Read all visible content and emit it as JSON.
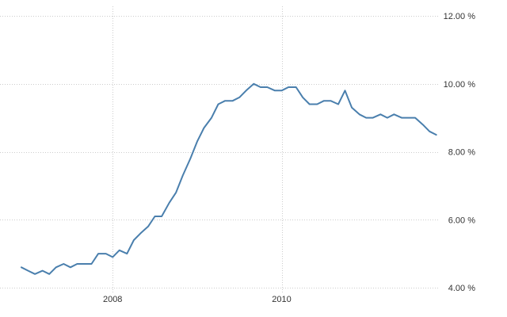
{
  "chart_data": {
    "type": "line",
    "title": "",
    "xlabel": "",
    "ylabel": "",
    "x_ticks": [
      {
        "label": "2008",
        "x": 2008.0
      },
      {
        "label": "2010",
        "x": 2010.0
      }
    ],
    "y_ticks": [
      {
        "label": "4.00 %",
        "y": 4
      },
      {
        "label": "6.00 %",
        "y": 6
      },
      {
        "label": "8.00 %",
        "y": 8
      },
      {
        "label": "10.00 %",
        "y": 10
      },
      {
        "label": "12.00 %",
        "y": 12
      }
    ],
    "xlim": [
      2006.92,
      2011.87
    ],
    "ylim": [
      4,
      12
    ],
    "y_axis_position": "right",
    "grid": true,
    "line_color": "#4a7fad",
    "grid_color": "#cccccc",
    "series": [
      {
        "x": [
          2006.92,
          2007.0,
          2007.08,
          2007.17,
          2007.25,
          2007.33,
          2007.42,
          2007.5,
          2007.58,
          2007.67,
          2007.75,
          2007.83,
          2007.92,
          2008.0,
          2008.08,
          2008.17,
          2008.25,
          2008.33,
          2008.42,
          2008.5,
          2008.58,
          2008.67,
          2008.75,
          2008.83,
          2008.92,
          2009.0,
          2009.08,
          2009.17,
          2009.25,
          2009.33,
          2009.42,
          2009.5,
          2009.58,
          2009.67,
          2009.75,
          2009.83,
          2009.92,
          2010.0,
          2010.08,
          2010.17,
          2010.25,
          2010.33,
          2010.42,
          2010.5,
          2010.58,
          2010.67,
          2010.75,
          2010.83,
          2010.92,
          2011.0,
          2011.08,
          2011.17,
          2011.25,
          2011.33,
          2011.42,
          2011.5,
          2011.58,
          2011.67,
          2011.75,
          2011.83
        ],
        "values": [
          4.6,
          4.5,
          4.4,
          4.5,
          4.4,
          4.6,
          4.7,
          4.6,
          4.7,
          4.7,
          4.7,
          5.0,
          5.0,
          4.9,
          5.1,
          5.0,
          5.4,
          5.6,
          5.8,
          6.1,
          6.1,
          6.5,
          6.8,
          7.3,
          7.8,
          8.3,
          8.7,
          9.0,
          9.4,
          9.5,
          9.5,
          9.6,
          9.8,
          10.0,
          9.9,
          9.9,
          9.8,
          9.8,
          9.9,
          9.9,
          9.6,
          9.4,
          9.4,
          9.5,
          9.5,
          9.4,
          9.8,
          9.3,
          9.1,
          9.0,
          9.0,
          9.1,
          9.0,
          9.1,
          9.0,
          9.0,
          9.0,
          8.8,
          8.6,
          8.5
        ]
      }
    ]
  }
}
